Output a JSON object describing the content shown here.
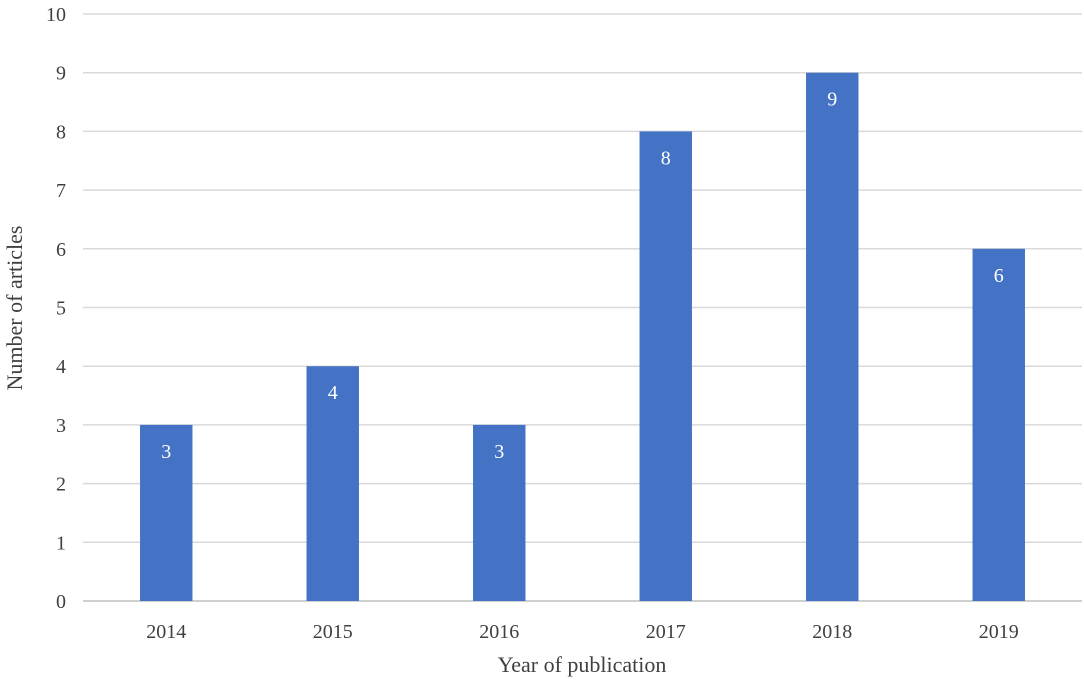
{
  "chart_data": {
    "type": "bar",
    "title": "",
    "xlabel": "Year of publication",
    "ylabel": "Number of articles",
    "categories": [
      "2014",
      "2015",
      "2016",
      "2017",
      "2018",
      "2019"
    ],
    "series": [
      {
        "values": [
          3,
          4,
          3,
          8,
          9,
          6
        ]
      }
    ],
    "ylim": [
      0,
      10
    ],
    "yticks": [
      0,
      1,
      2,
      3,
      4,
      5,
      6,
      7,
      8,
      9,
      10
    ],
    "grid": true,
    "legend": "none",
    "bar_color": "#4472C4",
    "data_labels": true
  }
}
